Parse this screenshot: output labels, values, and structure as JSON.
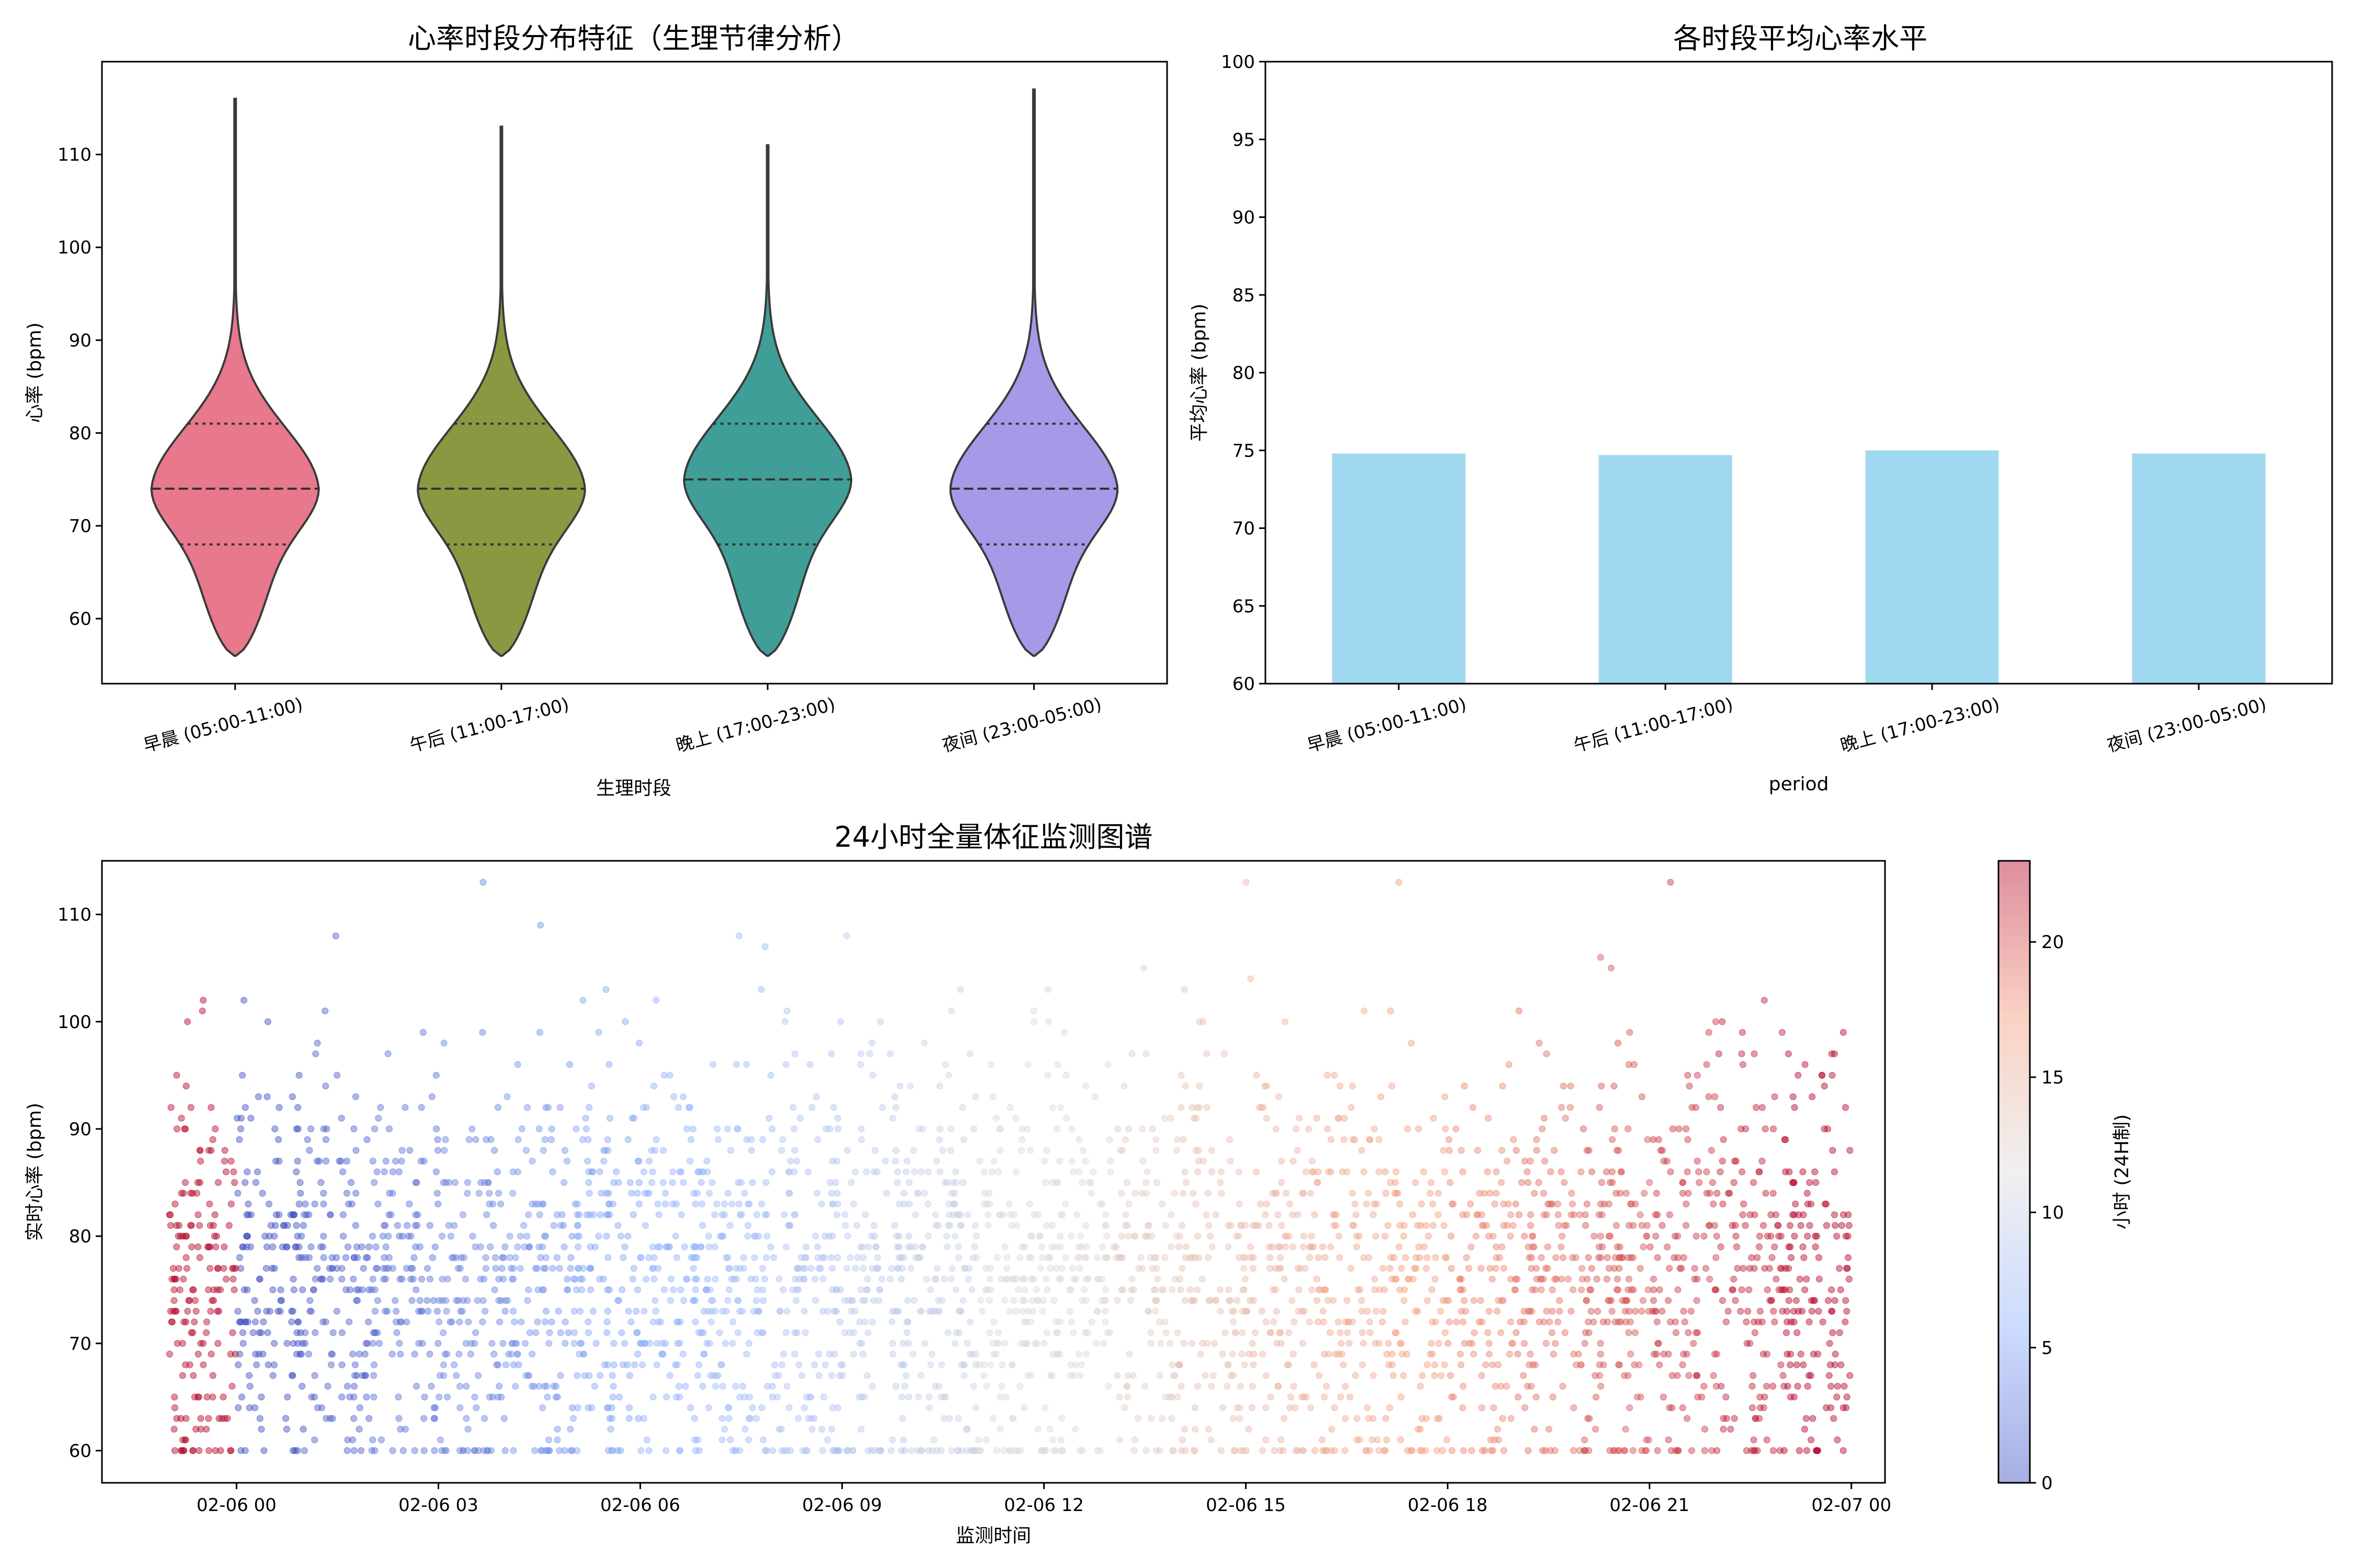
{
  "chart_data": [
    {
      "type": "violin",
      "title": "心率时段分布特征（生理节律分析）",
      "xlabel": "生理时段",
      "ylabel": "心率 (bpm)",
      "ylim": [
        53,
        120
      ],
      "yticks": [
        60,
        70,
        80,
        90,
        100,
        110
      ],
      "categories": [
        "早晨 (05:00-11:00)",
        "午后 (11:00-17:00)",
        "晚上 (17:00-23:00)",
        "夜间 (23:00-05:00)"
      ],
      "colors": [
        "#e8788b",
        "#8a9842",
        "#3f9e97",
        "#a699e8"
      ],
      "series": [
        {
          "min": 56,
          "q1": 68,
          "median": 74,
          "q3": 81,
          "max": 116
        },
        {
          "min": 56,
          "q1": 68,
          "median": 74,
          "q3": 81,
          "max": 113
        },
        {
          "min": 56,
          "q1": 68,
          "median": 75,
          "q3": 81,
          "max": 111
        },
        {
          "min": 56,
          "q1": 68,
          "median": 74,
          "q3": 81,
          "max": 117
        }
      ]
    },
    {
      "type": "bar",
      "title": "各时段平均心率水平",
      "xlabel": "period",
      "ylabel": "平均心率 (bpm)",
      "ylim": [
        60,
        100
      ],
      "yticks": [
        60,
        65,
        70,
        75,
        80,
        85,
        90,
        95,
        100
      ],
      "categories": [
        "早晨 (05:00-11:00)",
        "午后 (11:00-17:00)",
        "晚上 (17:00-23:00)",
        "夜间 (23:00-05:00)"
      ],
      "values": [
        74.8,
        74.7,
        75.0,
        74.8
      ],
      "color": "#87ceeb"
    },
    {
      "type": "scatter",
      "title": "24小时全量体征监测图谱",
      "xlabel": "监测时间",
      "ylabel": "实时心率 (bpm)",
      "xlim": [
        "02-05 22:00",
        "02-07 00:30"
      ],
      "xticks": [
        "02-06 00",
        "02-06 03",
        "02-06 06",
        "02-06 09",
        "02-06 12",
        "02-06 15",
        "02-06 18",
        "02-06 21",
        "02-07 00"
      ],
      "ylim": [
        57,
        115
      ],
      "yticks": [
        60,
        70,
        80,
        90,
        100,
        110
      ],
      "x_range": [
        "02-05 23:00",
        "02-06 23:59"
      ],
      "y_floor": 60,
      "y_center": 75,
      "colormap": "coolwarm",
      "colorbar": {
        "label": "小时 (24H制)",
        "range": [
          0,
          23
        ],
        "ticks": [
          0,
          5,
          10,
          15,
          20
        ]
      }
    }
  ]
}
